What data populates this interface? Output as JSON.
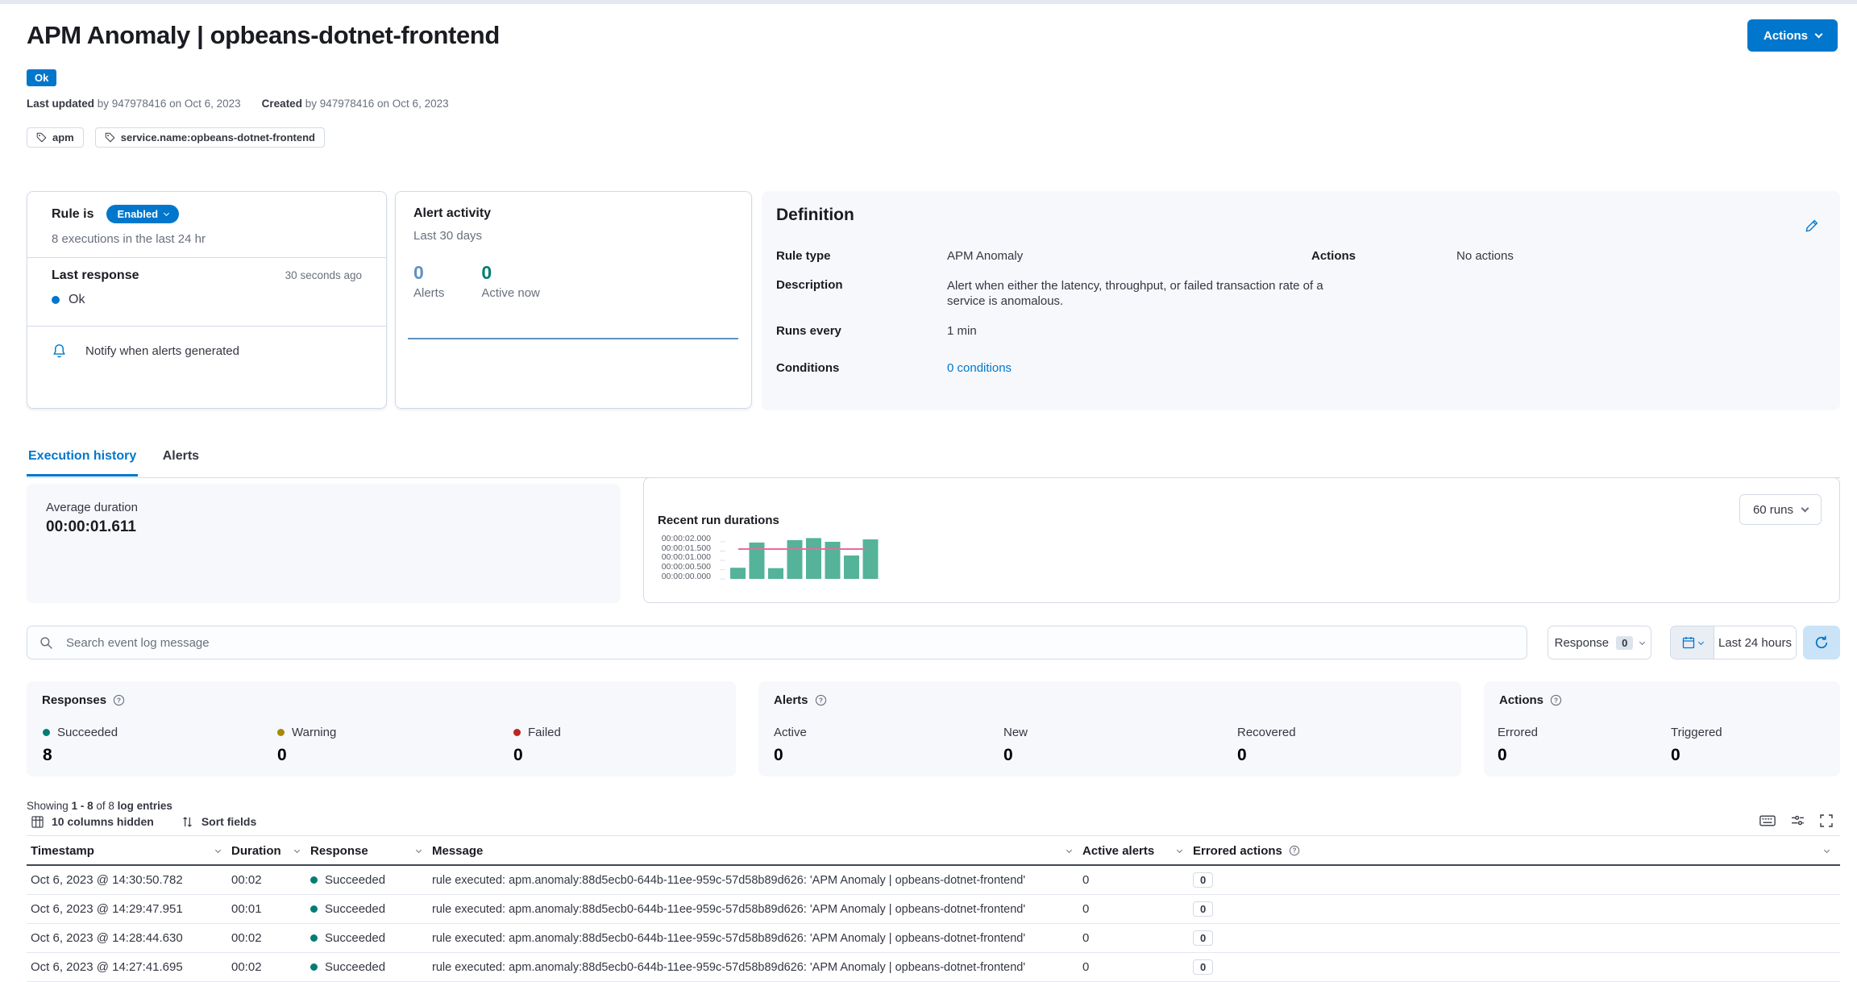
{
  "colors": {
    "primary": "#0077CC",
    "success_teal": "#017D73",
    "warning_olive": "#A68A04",
    "danger_red": "#BD271E",
    "vis_blue": "#6092C0",
    "bar_green": "#54B399",
    "avg_line_pink": "#EC699F"
  },
  "header": {
    "title": "APM Anomaly | opbeans-dotnet-frontend",
    "status_badge": "Ok",
    "last_updated_label": "Last updated",
    "last_updated_text": " by 947978416 on Oct 6, 2023",
    "created_label": "Created",
    "created_text": " by 947978416 on Oct 6, 2023",
    "tags": [
      "apm",
      "service.name:opbeans-dotnet-frontend"
    ],
    "actions_button": "Actions"
  },
  "rule_card": {
    "title": "Rule is",
    "enabled_button": "Enabled",
    "executions_text": "8 executions in the last 24 hr",
    "last_response_label": "Last response",
    "last_response_time": "30 seconds ago",
    "last_response_value": "Ok",
    "notify_text": "Notify when alerts generated"
  },
  "alert_activity": {
    "title": "Alert activity",
    "subtitle": "Last 30 days",
    "alerts_count": "0",
    "alerts_label": "Alerts",
    "active_count": "0",
    "active_label": "Active now"
  },
  "definition": {
    "title": "Definition",
    "rule_type_label": "Rule type",
    "rule_type_value": "APM Anomaly",
    "description_label": "Description",
    "description_value": "Alert when either the latency, throughput, or failed transaction rate of a service is anomalous.",
    "runs_every_label": "Runs every",
    "runs_every_value": "1 min",
    "conditions_label": "Conditions",
    "conditions_value": "0 conditions",
    "actions_label": "Actions",
    "actions_value": "No actions"
  },
  "tabs": {
    "execution_history": "Execution history",
    "alerts": "Alerts"
  },
  "avg_duration": {
    "label": "Average duration",
    "value": "00:00:01.611"
  },
  "chart_data": {
    "type": "bar",
    "title": "Recent run durations",
    "runs_selector": "60 runs",
    "values": [
      0.6,
      1.96,
      0.58,
      2.09,
      2.2,
      2.0,
      1.26,
      2.13
    ],
    "unit": "seconds",
    "avg_line": 1.611,
    "y_ticks": [
      "00:00:02.000",
      "00:00:01.500",
      "00:00:01.000",
      "00:00:00.500",
      "00:00:00.000"
    ],
    "ylim": [
      0,
      2.3
    ],
    "grid": false,
    "legend": "none",
    "bar_color": "#54B399",
    "avg_line_color": "#EC699F"
  },
  "search": {
    "placeholder": "Search event log message",
    "response_filter_label": "Response",
    "response_filter_count": "0",
    "time_range": "Last 24 hours"
  },
  "stats": {
    "responses": {
      "title": "Responses",
      "items": [
        {
          "label": "Succeeded",
          "value": "8"
        },
        {
          "label": "Warning",
          "value": "0"
        },
        {
          "label": "Failed",
          "value": "0"
        }
      ]
    },
    "alerts": {
      "title": "Alerts",
      "items": [
        {
          "label": "Active",
          "value": "0"
        },
        {
          "label": "New",
          "value": "0"
        },
        {
          "label": "Recovered",
          "value": "0"
        }
      ]
    },
    "actions": {
      "title": "Actions",
      "items": [
        {
          "label": "Errored",
          "value": "0"
        },
        {
          "label": "Triggered",
          "value": "0"
        }
      ]
    }
  },
  "log_section": {
    "showing": {
      "prefix": "Showing",
      "range": "1 - 8",
      "of": "of 8",
      "entries": "log entries"
    },
    "controls": {
      "columns_hidden": "10 columns hidden",
      "sort_fields": "Sort fields"
    },
    "table": {
      "columns": [
        "Timestamp",
        "Duration",
        "Response",
        "Message",
        "Active alerts",
        "Errored actions"
      ],
      "rows": [
        {
          "timestamp": "Oct 6, 2023 @ 14:30:50.782",
          "duration": "00:02",
          "response": "Succeeded",
          "message": "rule executed: apm.anomaly:88d5ecb0-644b-11ee-959c-57d58b89d626: 'APM Anomaly | opbeans-dotnet-frontend'",
          "active_alerts": "0",
          "errored_actions": "0"
        },
        {
          "timestamp": "Oct 6, 2023 @ 14:29:47.951",
          "duration": "00:01",
          "response": "Succeeded",
          "message": "rule executed: apm.anomaly:88d5ecb0-644b-11ee-959c-57d58b89d626: 'APM Anomaly | opbeans-dotnet-frontend'",
          "active_alerts": "0",
          "errored_actions": "0"
        },
        {
          "timestamp": "Oct 6, 2023 @ 14:28:44.630",
          "duration": "00:02",
          "response": "Succeeded",
          "message": "rule executed: apm.anomaly:88d5ecb0-644b-11ee-959c-57d58b89d626: 'APM Anomaly | opbeans-dotnet-frontend'",
          "active_alerts": "0",
          "errored_actions": "0"
        },
        {
          "timestamp": "Oct 6, 2023 @ 14:27:41.695",
          "duration": "00:02",
          "response": "Succeeded",
          "message": "rule executed: apm.anomaly:88d5ecb0-644b-11ee-959c-57d58b89d626: 'APM Anomaly | opbeans-dotnet-frontend'",
          "active_alerts": "0",
          "errored_actions": "0"
        }
      ]
    }
  }
}
